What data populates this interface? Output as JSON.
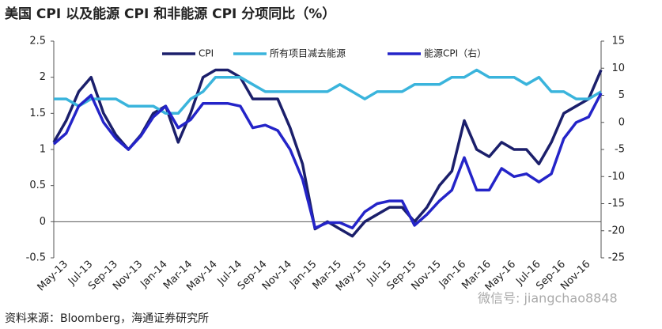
{
  "chart_data": {
    "type": "line",
    "title": "美国 CPI 以及能源 CPI 和非能源 CPI 分项同比（%）",
    "source": "资料来源：Bloomberg，海通证券研究所",
    "watermark": "微信号: jiangchao8848",
    "categories": [
      null,
      "May-13",
      null,
      "Jul-13",
      null,
      "Sep-13",
      null,
      "Nov-13",
      null,
      "Jan-14",
      null,
      "Mar-14",
      null,
      "May-14",
      null,
      "Jul-14",
      null,
      "Sep-14",
      null,
      "Nov-14",
      null,
      "Jan-15",
      null,
      "Mar-15",
      null,
      "May-15",
      null,
      "Jul-15",
      null,
      "Sep-15",
      null,
      "Nov-15",
      null,
      "Jan-16",
      null,
      "Mar-16",
      null,
      "May-16",
      null,
      "Jul-16",
      null,
      "Sep-16",
      null,
      "Nov-16",
      null
    ],
    "series": [
      {
        "name": "CPI",
        "color": "#1b1f6b",
        "axis": "y",
        "values": [
          1.1,
          1.4,
          1.8,
          2.0,
          1.5,
          1.2,
          1.0,
          1.2,
          1.5,
          1.6,
          1.1,
          1.5,
          2.0,
          2.1,
          2.1,
          2.0,
          1.7,
          1.7,
          1.7,
          1.3,
          0.8,
          -0.1,
          0.0,
          -0.1,
          -0.2,
          0.0,
          0.1,
          0.2,
          0.2,
          0.0,
          0.2,
          0.5,
          0.7,
          1.4,
          1.0,
          0.9,
          1.1,
          1.0,
          1.0,
          0.8,
          1.1,
          1.5,
          1.6,
          1.7,
          2.1
        ]
      },
      {
        "name": "所有项目减去能源",
        "color": "#3ab4dc",
        "axis": "y",
        "values": [
          1.7,
          1.7,
          1.6,
          1.7,
          1.7,
          1.7,
          1.6,
          1.6,
          1.6,
          1.5,
          1.5,
          1.7,
          1.8,
          2.0,
          2.0,
          2.0,
          1.9,
          1.8,
          1.8,
          1.8,
          1.8,
          1.8,
          1.8,
          1.9,
          1.8,
          1.7,
          1.8,
          1.8,
          1.8,
          1.9,
          1.9,
          1.9,
          2.0,
          2.0,
          2.1,
          2.0,
          2.0,
          2.0,
          1.9,
          2.0,
          1.8,
          1.8,
          1.7,
          1.7,
          1.8
        ]
      },
      {
        "name": "能源CPI（右）",
        "color": "#2424c8",
        "axis": "y2",
        "values": [
          -4,
          -2,
          3,
          5,
          0,
          -3,
          -5,
          -2.5,
          1,
          3,
          -1,
          0.5,
          3.5,
          3.5,
          3.5,
          3,
          -1,
          -0.5,
          -1.5,
          -5,
          -10.5,
          -19.5,
          -18.5,
          -18.5,
          -19.5,
          -16.5,
          -15,
          -14.5,
          -14.5,
          -19,
          -17,
          -14.5,
          -12.5,
          -6.5,
          -12.5,
          -12.5,
          -8.5,
          -10,
          -9.5,
          -11,
          -9.5,
          -3,
          0,
          1,
          5.4
        ]
      }
    ],
    "ylim": [
      -0.5,
      2.5
    ],
    "yticks": [
      -0.5,
      0,
      0.5,
      1,
      1.5,
      2,
      2.5
    ],
    "y2lim": [
      -25,
      15
    ],
    "y2ticks": [
      -25,
      -20,
      -15,
      -10,
      -5,
      0,
      5,
      10,
      15
    ]
  }
}
